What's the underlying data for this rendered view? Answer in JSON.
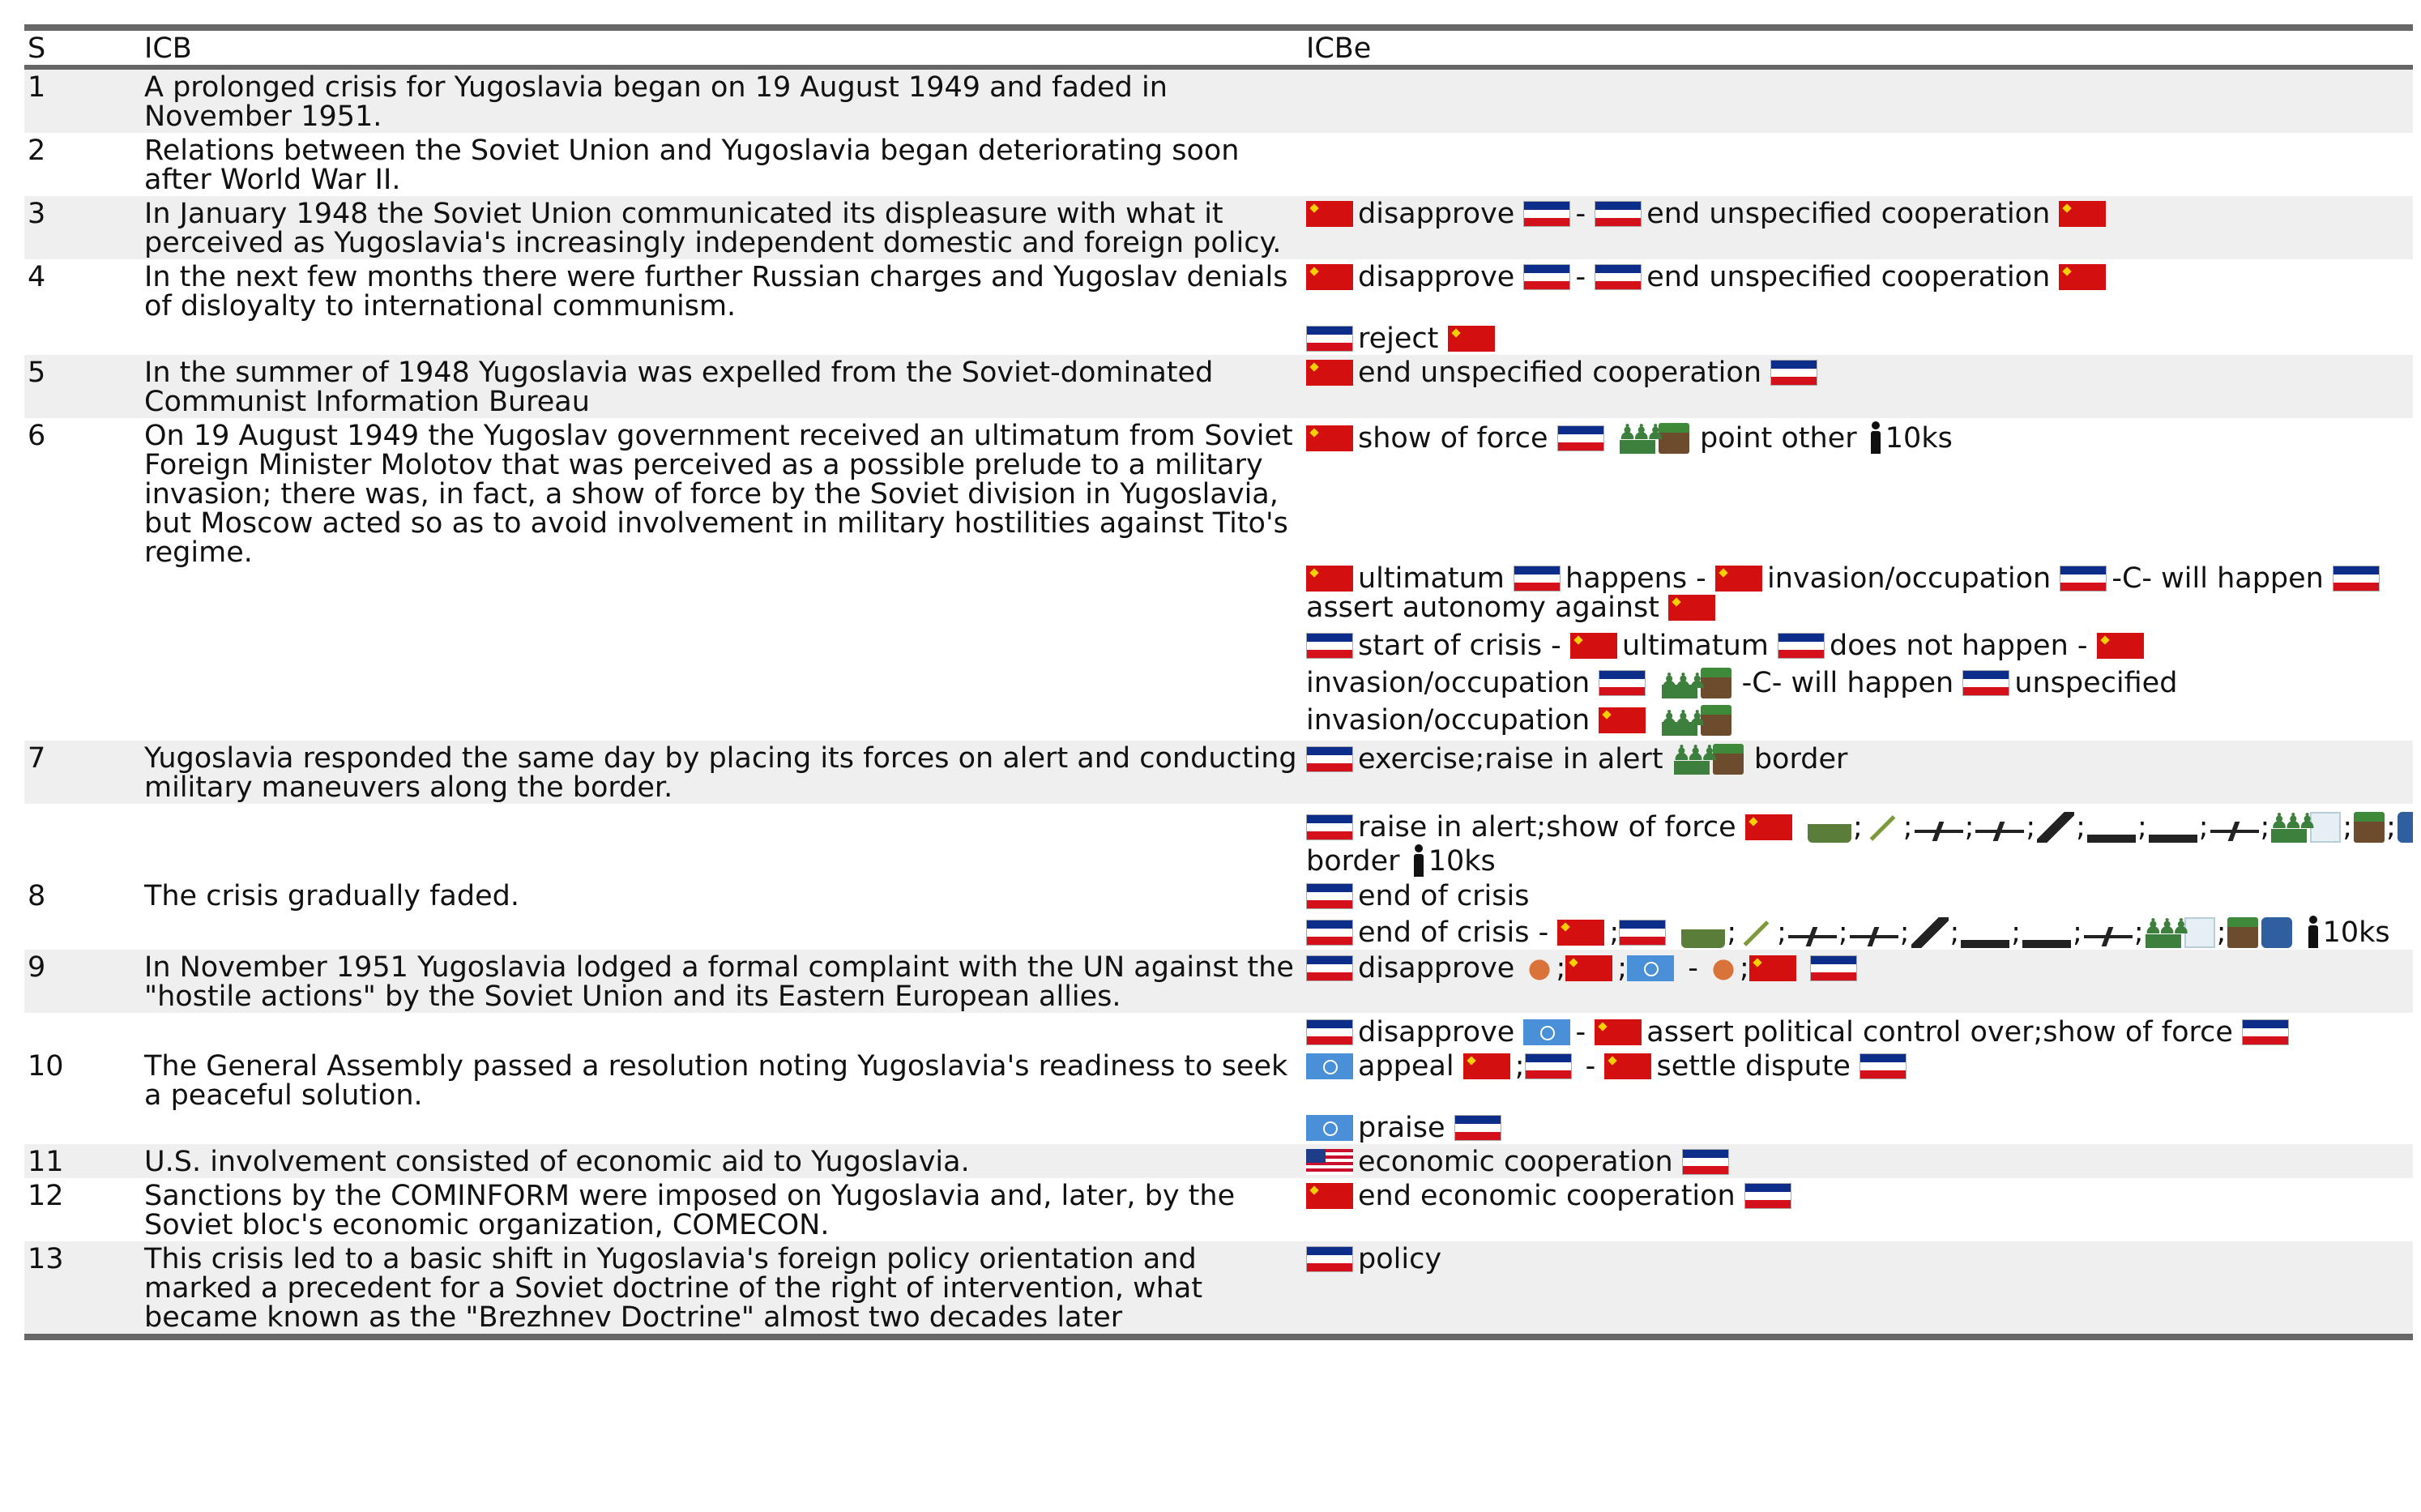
{
  "headers": {
    "s": "S",
    "icb": "ICB",
    "icbe": "ICBe"
  },
  "flags": {
    "su": "soviet-union-flag",
    "yu": "yugoslavia-flag",
    "un": "un-flag",
    "us": "us-flag"
  },
  "rows": [
    {
      "s": "1",
      "icb": "A prolonged crisis for Yugoslavia began on 19 August 1949 and faded in November 1951."
    },
    {
      "s": "2",
      "icb": "Relations between the Soviet Union and Yugoslavia began deteriorating soon after World War II."
    },
    {
      "s": "3",
      "icb": "In January 1948 the Soviet Union communicated its displeasure with what it perceived as Yugoslavia's increasingly independent domestic and foreign policy.",
      "events": [
        {
          "a": "disapprove",
          "sep": "-",
          "b": "end unspecified cooperation"
        }
      ]
    },
    {
      "s": "4",
      "icb": "In the next few months there were further Russian charges and Yugoslav denials of disloyalty to international communism.",
      "events": [
        {
          "a": "disapprove",
          "sep": "-",
          "b": "end unspecified cooperation"
        },
        {
          "a": "reject"
        }
      ]
    },
    {
      "s": "5",
      "icb": "In the summer of 1948 Yugoslavia was expelled from the Soviet-dominated Communist Information Bureau",
      "events": [
        {
          "a": "end unspecified cooperation"
        }
      ]
    },
    {
      "s": "6",
      "icb": "On 19 August 1949 the Yugoslav government received an ultimatum from Soviet Foreign Minister Molotov that was perceived as a possible prelude to a military invasion; there was, in fact, a show of force by the Soviet division in Yugoslavia, but Moscow acted so as to avoid involvement in military hostilities against Tito's regime.",
      "events": [
        {
          "a": "show of force",
          "b": "point other",
          "c": "10ks"
        },
        {
          "a": "ultimatum",
          "b": "happens -",
          "c": "invasion/occupation",
          "d": "-C- will happen",
          "e": "assert autonomy against"
        },
        {
          "a": "start of crisis -",
          "b": "ultimatum",
          "c": "does not happen -",
          "d": "invasion/occupation",
          "e": "-C- will happen",
          "f": "unspecified",
          "g": "invasion/occupation"
        }
      ]
    },
    {
      "s": "7",
      "icb": "Yugoslavia responded the same day by placing its forces on alert and conducting military maneuvers along the border.",
      "events": [
        {
          "a": "exercise;raise in alert",
          "b": "border"
        }
      ]
    },
    {
      "s": "",
      "icb": "",
      "events": [
        {
          "a": "raise in alert;show of force",
          "b": "border",
          "c": "10ks",
          "semi": ";"
        }
      ]
    },
    {
      "s": "8",
      "icb": "The crisis gradually faded.",
      "events": [
        {
          "a": "end of crisis"
        },
        {
          "a": "end of crisis -",
          "c": "10ks",
          "semi": ";"
        }
      ]
    },
    {
      "s": "9",
      "icb": "In November 1951 Yugoslavia lodged a formal complaint with the UN against the \"hostile actions\" by the Soviet Union and its Eastern European allies.",
      "events": [
        {
          "a": "disapprove",
          "semi": ";",
          "sep": "-"
        }
      ]
    },
    {
      "s": "10",
      "icb": "The General Assembly passed a resolution noting Yugoslavia's readiness to seek a peaceful solution.",
      "events": [
        {
          "a": "disapprove",
          "sep": "-",
          "b": "assert political control over;show of force"
        },
        {
          "a": "appeal",
          "semi": ";",
          "sep": "-",
          "b": "settle dispute"
        },
        {
          "a": "praise"
        }
      ]
    },
    {
      "s": "11",
      "icb": "U.S. involvement consisted of economic aid to Yugoslavia.",
      "events": [
        {
          "a": "economic cooperation"
        }
      ]
    },
    {
      "s": "12",
      "icb": "Sanctions by the COMINFORM were imposed on Yugoslavia and, later, by the Soviet bloc's economic organization, COMECON.",
      "events": [
        {
          "a": "end economic cooperation"
        }
      ]
    },
    {
      "s": "13",
      "icb": "This crisis led to a basic shift in Yugoslavia's foreign policy orientation and marked a precedent for a Soviet doctrine of the right of intervention, what became known as the \"Brezhnev Doctrine\" almost two decades later",
      "events": [
        {
          "a": "policy"
        }
      ]
    }
  ]
}
